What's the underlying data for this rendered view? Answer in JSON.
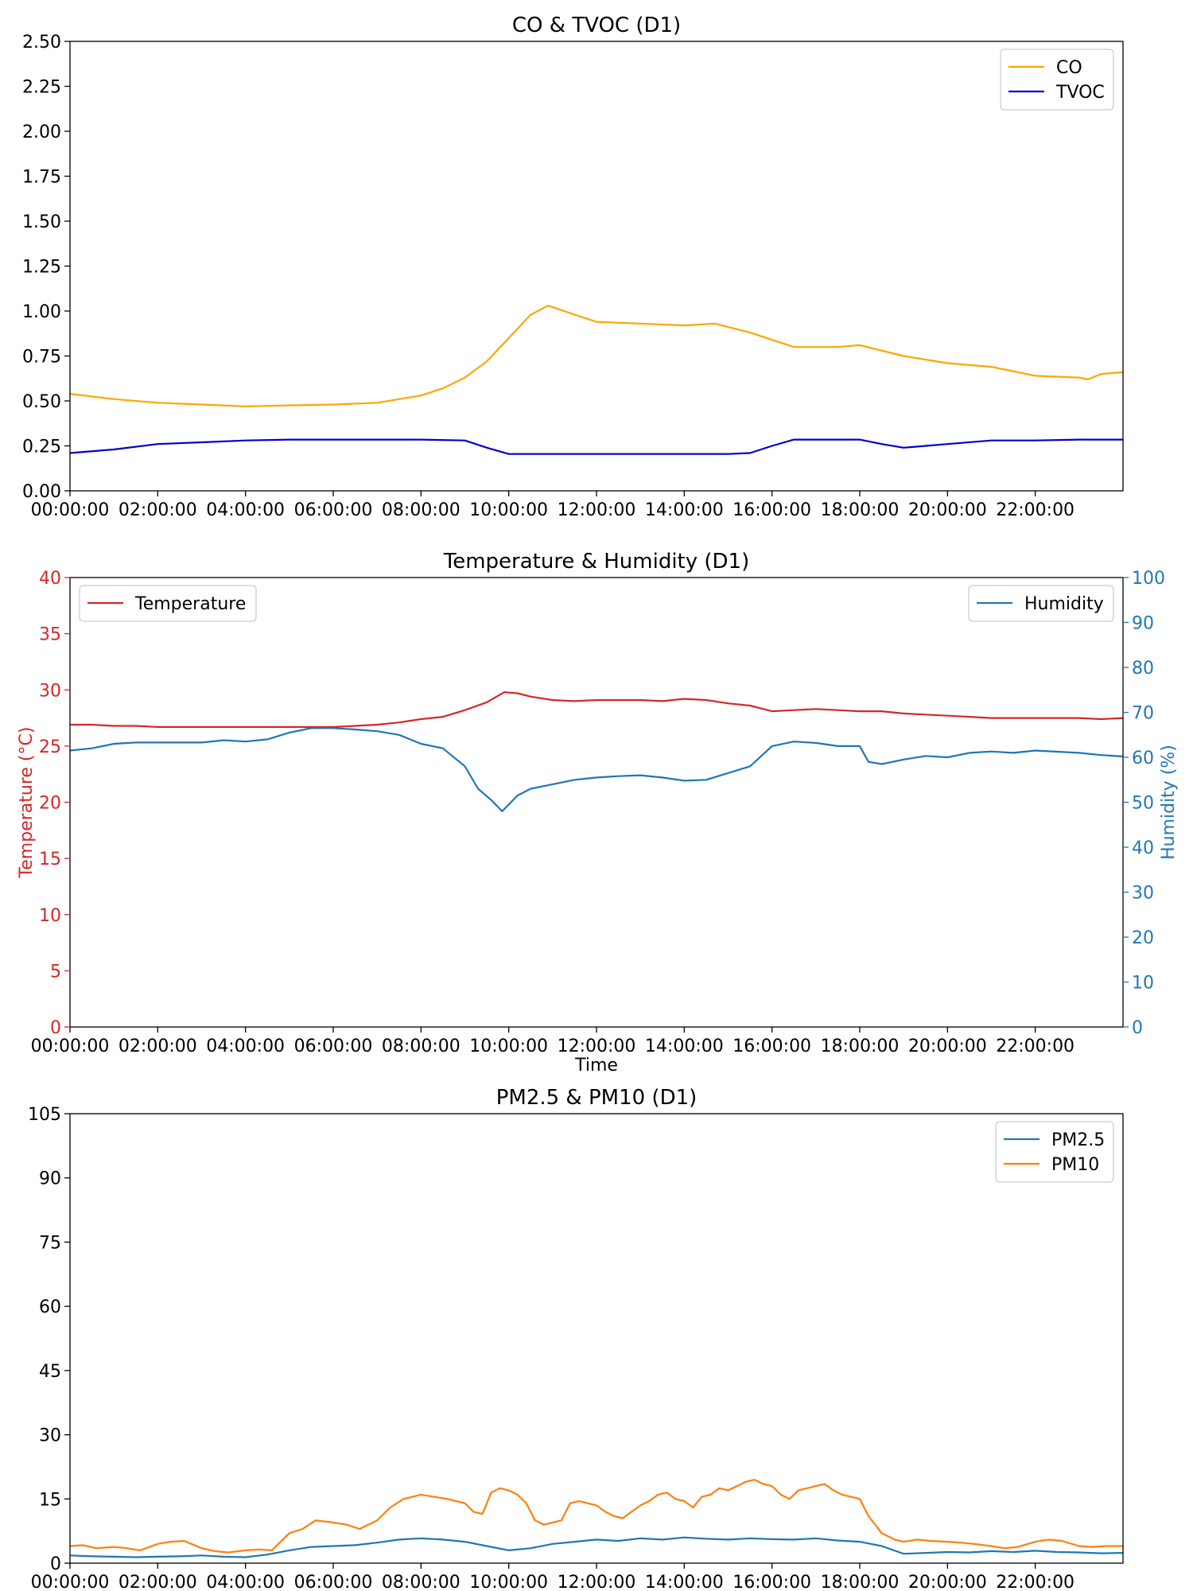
{
  "colors": {
    "co": "#ffa500",
    "tvoc": "#0000cd",
    "temperature": "#d62728",
    "humidity": "#1f77b4",
    "pm25": "#1f77b4",
    "pm10": "#ff7f0e",
    "axis": "#000000"
  },
  "chart_data": [
    {
      "id": "co_tvoc",
      "type": "line",
      "title": "CO & TVOC (D1)",
      "xlabel": "",
      "ylabel": "",
      "x_unit": "hours of day",
      "xlim": [
        0,
        24
      ],
      "ylim": [
        0,
        2.5
      ],
      "xticks": [
        0,
        2,
        4,
        6,
        8,
        10,
        12,
        14,
        16,
        18,
        20,
        22
      ],
      "xtick_labels": [
        "00:00:00",
        "02:00:00",
        "04:00:00",
        "06:00:00",
        "08:00:00",
        "10:00:00",
        "12:00:00",
        "14:00:00",
        "16:00:00",
        "18:00:00",
        "20:00:00",
        "22:00:00"
      ],
      "yticks": [
        0,
        0.25,
        0.5,
        0.75,
        1.0,
        1.25,
        1.5,
        1.75,
        2.0,
        2.25,
        2.5
      ],
      "ytick_labels": [
        "0.00",
        "0.25",
        "0.50",
        "0.75",
        "1.00",
        "1.25",
        "1.50",
        "1.75",
        "2.00",
        "2.25",
        "2.50"
      ],
      "legend": "top-right",
      "grid": false,
      "series": [
        {
          "name": "CO",
          "color_key": "co",
          "x": [
            0,
            1,
            2,
            3,
            4,
            5,
            6,
            7,
            8,
            8.5,
            9,
            9.5,
            10,
            10.5,
            10.9,
            11.5,
            12,
            13,
            14,
            14.7,
            15.5,
            16.5,
            17.5,
            18,
            19,
            20,
            21,
            22,
            23,
            23.2,
            23.5,
            24
          ],
          "y": [
            0.54,
            0.51,
            0.49,
            0.48,
            0.47,
            0.475,
            0.48,
            0.49,
            0.53,
            0.57,
            0.63,
            0.72,
            0.85,
            0.98,
            1.03,
            0.98,
            0.94,
            0.93,
            0.92,
            0.93,
            0.88,
            0.8,
            0.8,
            0.81,
            0.75,
            0.71,
            0.69,
            0.64,
            0.63,
            0.62,
            0.65,
            0.66
          ]
        },
        {
          "name": "TVOC",
          "color_key": "tvoc",
          "x": [
            0,
            1,
            2,
            3,
            4,
            5,
            6,
            7,
            8,
            9,
            9.5,
            10,
            11,
            12,
            13,
            14,
            15,
            15.5,
            16,
            16.5,
            17,
            18,
            18.5,
            19,
            19.5,
            20,
            21,
            22,
            23,
            24
          ],
          "y": [
            0.21,
            0.23,
            0.26,
            0.27,
            0.28,
            0.285,
            0.285,
            0.285,
            0.285,
            0.28,
            0.24,
            0.205,
            0.205,
            0.205,
            0.205,
            0.205,
            0.205,
            0.21,
            0.25,
            0.285,
            0.285,
            0.285,
            0.26,
            0.24,
            0.25,
            0.26,
            0.28,
            0.28,
            0.285,
            0.285
          ]
        }
      ]
    },
    {
      "id": "temp_hum",
      "type": "line",
      "title": "Temperature & Humidity (D1)",
      "xlabel": "Time",
      "ylabel": "Temperature (°C)",
      "ylabel_right": "Humidity (%)",
      "x_unit": "hours of day",
      "xlim": [
        0,
        24
      ],
      "ylim": [
        0,
        40
      ],
      "ylim_right": [
        0,
        100
      ],
      "xticks": [
        0,
        2,
        4,
        6,
        8,
        10,
        12,
        14,
        16,
        18,
        20,
        22
      ],
      "xtick_labels": [
        "00:00:00",
        "02:00:00",
        "04:00:00",
        "06:00:00",
        "08:00:00",
        "10:00:00",
        "12:00:00",
        "14:00:00",
        "16:00:00",
        "18:00:00",
        "20:00:00",
        "22:00:00"
      ],
      "yticks": [
        0,
        5,
        10,
        15,
        20,
        25,
        30,
        35,
        40
      ],
      "ytick_labels": [
        "0",
        "5",
        "10",
        "15",
        "20",
        "25",
        "30",
        "35",
        "40"
      ],
      "yticks_right": [
        0,
        10,
        20,
        30,
        40,
        50,
        60,
        70,
        80,
        90,
        100
      ],
      "ytick_labels_right": [
        "0",
        "10",
        "20",
        "30",
        "40",
        "50",
        "60",
        "70",
        "80",
        "90",
        "100"
      ],
      "legend": "Temperature: top-left; Humidity: top-right",
      "grid": false,
      "series": [
        {
          "name": "Temperature",
          "color_key": "temperature",
          "axis": "left",
          "x": [
            0,
            0.5,
            1,
            1.5,
            2,
            3,
            4,
            5,
            6,
            6.5,
            7,
            7.5,
            8,
            8.5,
            9,
            9.5,
            9.9,
            10.2,
            10.5,
            11,
            11.5,
            12,
            13,
            13.5,
            14,
            14.5,
            15,
            15.5,
            16,
            16.5,
            17,
            17.5,
            18,
            18.5,
            19,
            19.5,
            20,
            20.5,
            21,
            22,
            23,
            23.5,
            24
          ],
          "y": [
            26.9,
            26.9,
            26.8,
            26.8,
            26.7,
            26.7,
            26.7,
            26.7,
            26.7,
            26.8,
            26.9,
            27.1,
            27.4,
            27.6,
            28.2,
            28.9,
            29.8,
            29.7,
            29.4,
            29.1,
            29.0,
            29.1,
            29.1,
            29.0,
            29.2,
            29.1,
            28.8,
            28.6,
            28.1,
            28.2,
            28.3,
            28.2,
            28.1,
            28.1,
            27.9,
            27.8,
            27.7,
            27.6,
            27.5,
            27.5,
            27.5,
            27.4,
            27.5
          ]
        },
        {
          "name": "Humidity",
          "color_key": "humidity",
          "axis": "right",
          "x": [
            0,
            0.5,
            1,
            1.5,
            2,
            3,
            3.5,
            4,
            4.5,
            5,
            5.5,
            6,
            6.5,
            7,
            7.5,
            8,
            8.5,
            9,
            9.3,
            9.6,
            9.85,
            10.2,
            10.5,
            11,
            11.5,
            12,
            12.5,
            13,
            13.5,
            14,
            14.5,
            15,
            15.5,
            16,
            16.5,
            17,
            17.5,
            18,
            18.2,
            18.5,
            19,
            19.5,
            20,
            20.5,
            21,
            21.5,
            22,
            23,
            23.5,
            24
          ],
          "y": [
            61.5,
            62,
            63,
            63.3,
            63.3,
            63.3,
            63.8,
            63.5,
            64,
            65.5,
            66.5,
            66.5,
            66.2,
            65.8,
            65,
            63,
            62,
            58,
            53,
            50.5,
            48,
            51.5,
            53,
            54,
            55,
            55.5,
            55.8,
            56,
            55.5,
            54.8,
            55,
            56.5,
            58,
            62.5,
            63.5,
            63.2,
            62.5,
            62.5,
            59,
            58.5,
            59.5,
            60.3,
            60,
            61,
            61.3,
            61,
            61.5,
            61,
            60.5,
            60.2
          ]
        }
      ]
    },
    {
      "id": "pm",
      "type": "line",
      "title": "PM2.5 & PM10 (D1)",
      "xlabel": "",
      "ylabel": "",
      "x_unit": "hours of day",
      "xlim": [
        0,
        24
      ],
      "ylim": [
        0,
        105
      ],
      "xticks": [
        0,
        2,
        4,
        6,
        8,
        10,
        12,
        14,
        16,
        18,
        20,
        22
      ],
      "xtick_labels": [
        "00:00:00",
        "02:00:00",
        "04:00:00",
        "06:00:00",
        "08:00:00",
        "10:00:00",
        "12:00:00",
        "14:00:00",
        "16:00:00",
        "18:00:00",
        "20:00:00",
        "22:00:00"
      ],
      "yticks": [
        0,
        15,
        30,
        45,
        60,
        75,
        90,
        105
      ],
      "ytick_labels": [
        "0",
        "15",
        "30",
        "45",
        "60",
        "75",
        "90",
        "105"
      ],
      "legend": "top-right",
      "grid": false,
      "series": [
        {
          "name": "PM2.5",
          "color_key": "pm25",
          "x": [
            0,
            0.5,
            1,
            1.5,
            2,
            2.5,
            3,
            3.5,
            4,
            4.5,
            5,
            5.5,
            6,
            6.5,
            7,
            7.5,
            8,
            8.5,
            9,
            9.5,
            10,
            10.5,
            11,
            11.5,
            12,
            12.5,
            13,
            13.5,
            14,
            14.5,
            15,
            15.5,
            16,
            16.5,
            17,
            17.5,
            18,
            18.5,
            19,
            19.5,
            20,
            20.5,
            21,
            21.5,
            22,
            22.5,
            23,
            23.5,
            24
          ],
          "y": [
            1.8,
            1.6,
            1.5,
            1.4,
            1.5,
            1.6,
            1.8,
            1.5,
            1.4,
            2.0,
            3.0,
            3.8,
            4.0,
            4.2,
            4.8,
            5.5,
            5.8,
            5.5,
            5.0,
            4.0,
            3.0,
            3.5,
            4.5,
            5.0,
            5.5,
            5.2,
            5.8,
            5.5,
            6.0,
            5.7,
            5.5,
            5.8,
            5.6,
            5.5,
            5.8,
            5.3,
            5.0,
            4.0,
            2.2,
            2.4,
            2.6,
            2.5,
            2.8,
            2.6,
            2.9,
            2.6,
            2.5,
            2.3,
            2.4
          ]
        },
        {
          "name": "PM10",
          "color_key": "pm10",
          "x": [
            0,
            0.3,
            0.6,
            1,
            1.3,
            1.6,
            2,
            2.3,
            2.6,
            3,
            3.3,
            3.6,
            4,
            4.3,
            4.6,
            5,
            5.3,
            5.6,
            6,
            6.3,
            6.6,
            7,
            7.3,
            7.6,
            8,
            8.3,
            8.6,
            9,
            9.2,
            9.4,
            9.6,
            9.8,
            10,
            10.2,
            10.4,
            10.6,
            10.8,
            11,
            11.2,
            11.4,
            11.6,
            11.8,
            12,
            12.2,
            12.4,
            12.6,
            12.8,
            13,
            13.2,
            13.4,
            13.6,
            13.8,
            14,
            14.2,
            14.4,
            14.6,
            14.8,
            15,
            15.2,
            15.4,
            15.6,
            15.8,
            16,
            16.2,
            16.4,
            16.6,
            16.8,
            17,
            17.2,
            17.4,
            17.6,
            17.8,
            18,
            18.2,
            18.5,
            18.8,
            19,
            19.3,
            19.6,
            20,
            20.3,
            20.6,
            21,
            21.3,
            21.6,
            22,
            22.3,
            22.6,
            23,
            23.3,
            23.6,
            24
          ],
          "y": [
            4.0,
            4.2,
            3.5,
            3.8,
            3.5,
            3.0,
            4.5,
            5.0,
            5.2,
            3.5,
            2.8,
            2.5,
            3.0,
            3.2,
            3.0,
            7.0,
            8.0,
            10.0,
            9.5,
            9.0,
            8.0,
            10.0,
            13.0,
            15.0,
            16.0,
            15.5,
            15.0,
            14.0,
            12.0,
            11.5,
            16.5,
            17.5,
            17.0,
            16.0,
            14.0,
            10.0,
            9.0,
            9.5,
            10.0,
            14.0,
            14.5,
            14.0,
            13.5,
            12.0,
            11.0,
            10.5,
            12.0,
            13.5,
            14.5,
            16.0,
            16.5,
            15.0,
            14.5,
            13.0,
            15.5,
            16.0,
            17.5,
            17.0,
            18.0,
            19.0,
            19.5,
            18.5,
            18.0,
            16.0,
            15.0,
            17.0,
            17.5,
            18.0,
            18.5,
            17.0,
            16.0,
            15.5,
            15.0,
            11.0,
            7.0,
            5.5,
            5.0,
            5.5,
            5.2,
            5.0,
            4.8,
            4.5,
            4.0,
            3.5,
            3.8,
            5.0,
            5.5,
            5.2,
            4.0,
            3.8,
            4.0,
            4.0
          ]
        }
      ]
    }
  ]
}
